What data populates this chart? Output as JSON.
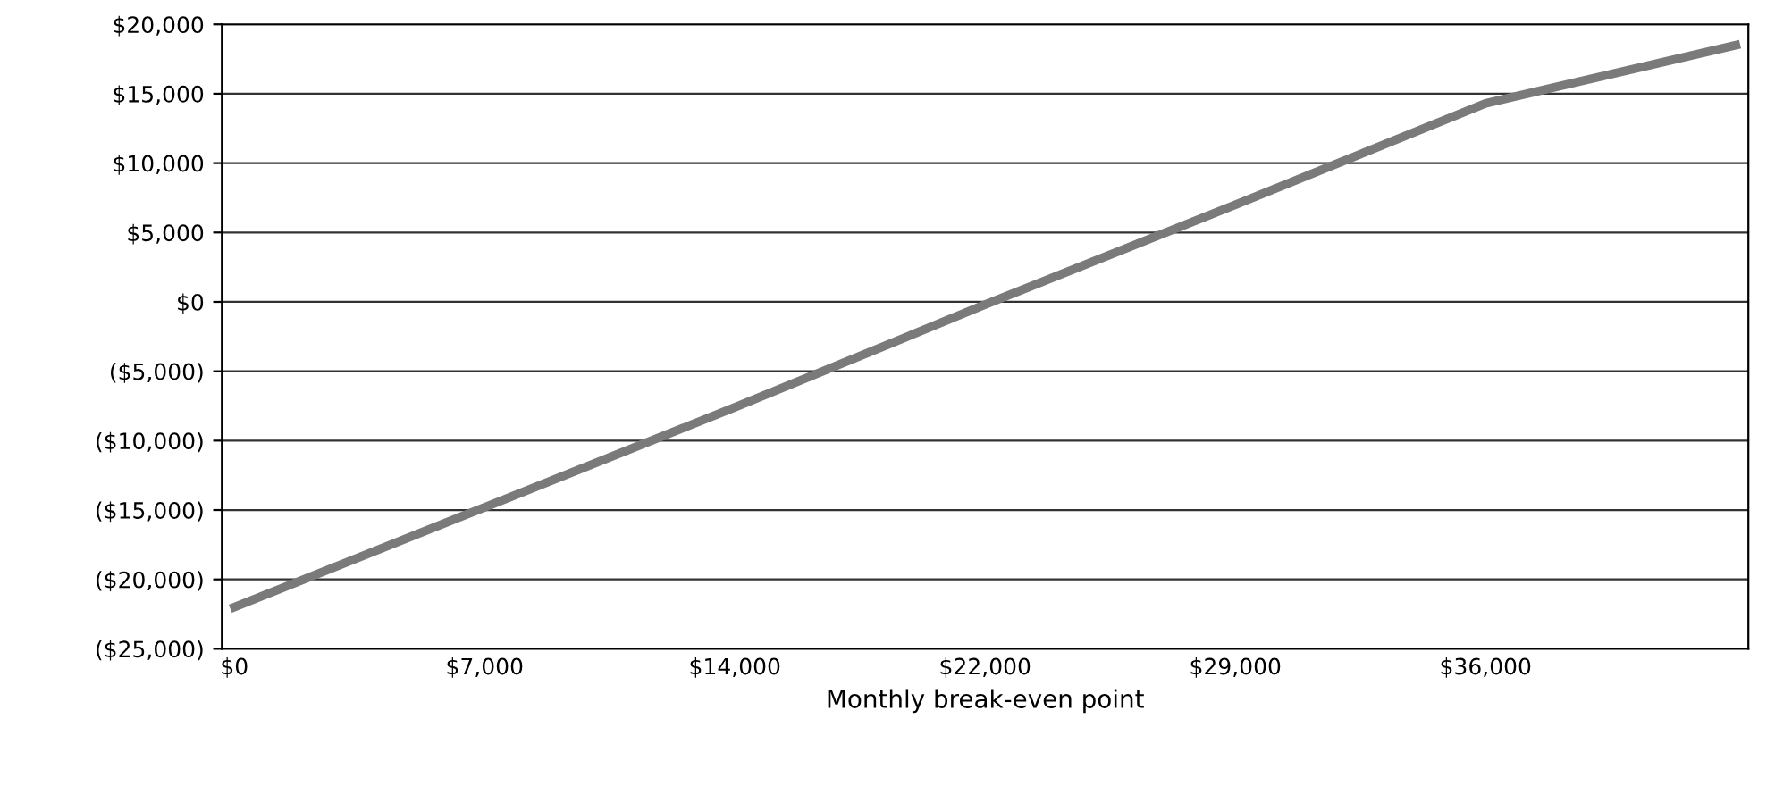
{
  "chart_data": {
    "type": "line",
    "xlabel": "Monthly break-even point",
    "categories": [
      "$0",
      "$7,000",
      "$14,000",
      "$22,000",
      "$29,000",
      "$36,000",
      null
    ],
    "series": [
      {
        "color": "#7a7a7a",
        "values": [
          -22000,
          -14800,
          -7600,
          -200,
          7000,
          14300,
          18500
        ]
      }
    ],
    "ylim": [
      -25000,
      20000
    ],
    "yticks": [
      {
        "value": -25000,
        "label": "($25,000)"
      },
      {
        "value": -20000,
        "label": "($20,000)"
      },
      {
        "value": -15000,
        "label": "($15,000)"
      },
      {
        "value": -10000,
        "label": "($10,000)"
      },
      {
        "value": -5000,
        "label": "($5,000)"
      },
      {
        "value": 0,
        "label": "$0"
      },
      {
        "value": 5000,
        "label": "$5,000"
      },
      {
        "value": 10000,
        "label": "$10,000"
      },
      {
        "value": 15000,
        "label": "$15,000"
      },
      {
        "value": 20000,
        "label": "$20,000"
      }
    ],
    "grid": "y",
    "legend": false,
    "marker": "none",
    "line_style": "solid"
  }
}
